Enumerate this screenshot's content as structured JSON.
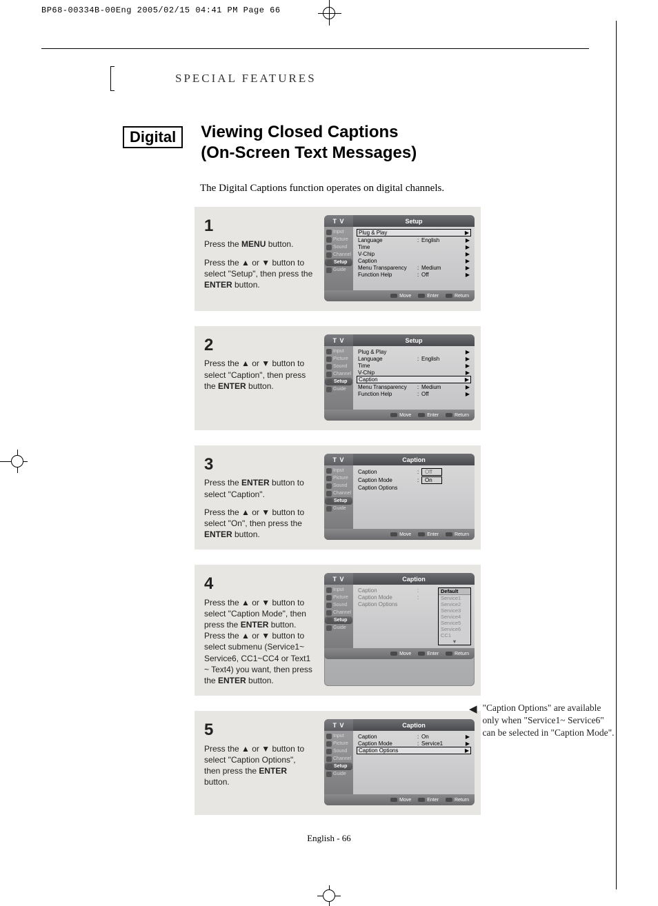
{
  "print_header": "BP68-00334B-00Eng  2005/02/15  04:41 PM  Page 66",
  "section_title": "SPECIAL FEATURES",
  "digital_badge": "Digital",
  "title_line1": "Viewing Closed Captions",
  "title_line2": "(On-Screen Text Messages)",
  "intro": "The Digital Captions function operates on digital channels.",
  "tv_label": "T V",
  "sidebar_items": [
    "Input",
    "Picture",
    "Sound",
    "Channel",
    "Setup",
    "Guide"
  ],
  "footer_items": [
    "Move",
    "Enter",
    "Return"
  ],
  "setup_title": "Setup",
  "caption_title": "Caption",
  "setup_menu": [
    {
      "label": "Plug & Play",
      "colon": "",
      "val": "",
      "arrow": "▶"
    },
    {
      "label": "Language",
      "colon": ":",
      "val": "English",
      "arrow": "▶"
    },
    {
      "label": "Time",
      "colon": "",
      "val": "",
      "arrow": "▶"
    },
    {
      "label": "V-Chip",
      "colon": "",
      "val": "",
      "arrow": "▶"
    },
    {
      "label": "Caption",
      "colon": "",
      "val": "",
      "arrow": "▶"
    },
    {
      "label": "Menu Transparency",
      "colon": ":",
      "val": "Medium",
      "arrow": "▶"
    },
    {
      "label": "Function Help",
      "colon": ":",
      "val": "Off",
      "arrow": "▶"
    }
  ],
  "step1": {
    "num": "1",
    "p1_a": "Press the ",
    "p1_b": "MENU",
    "p1_c": " button.",
    "p2_a": "Press the ▲ or ▼ button to select \"Setup\", then press the ",
    "p2_b": "ENTER",
    "p2_c": " button."
  },
  "step2": {
    "num": "2",
    "p1_a": "Press the ▲ or ▼ button to select \"Caption\", then press the ",
    "p1_b": "ENTER",
    "p1_c": " button."
  },
  "step3": {
    "num": "3",
    "p1_a": "Press the ",
    "p1_b": "ENTER",
    "p1_c": " button to select \"Caption\".",
    "p2_a": "Press the ▲ or ▼ button to select \"On\", then press the ",
    "p2_b": "ENTER",
    "p2_c": " button.",
    "caption_row": "Caption",
    "caption_mode": "Caption Mode",
    "caption_options": "Caption Options",
    "val_off": "Off",
    "val_on": "On"
  },
  "step4": {
    "num": "4",
    "p1_a": "Press the ▲ or ▼ button to select \"Caption Mode\", then press the ",
    "p1_b": "ENTER",
    "p1_c": " button.",
    "p2_a": "Press the ▲ or ▼ button to select  submenu (Service1~ Service6, CC1~CC4 or Text1 ~ Text4) you want, then press the ",
    "p2_b": "ENTER",
    "p2_c": " button.",
    "dropdown": [
      "Default",
      "Service1",
      "Service2",
      "Service3",
      "Service4",
      "Service5",
      "Service6",
      "CC1"
    ]
  },
  "step5": {
    "num": "5",
    "p1_a": "Press the ▲ or ▼ button to select \"Caption Options\", then press the ",
    "p1_b": "ENTER",
    "p1_c": " button.",
    "caption_val": "On",
    "mode_val": "Service1"
  },
  "side_note": {
    "tri": "◀",
    "text": "\"Caption Options\" are available only when \"Service1~ Service6\" can be selected in \"Caption Mode\"."
  },
  "page_footer": "English - 66"
}
